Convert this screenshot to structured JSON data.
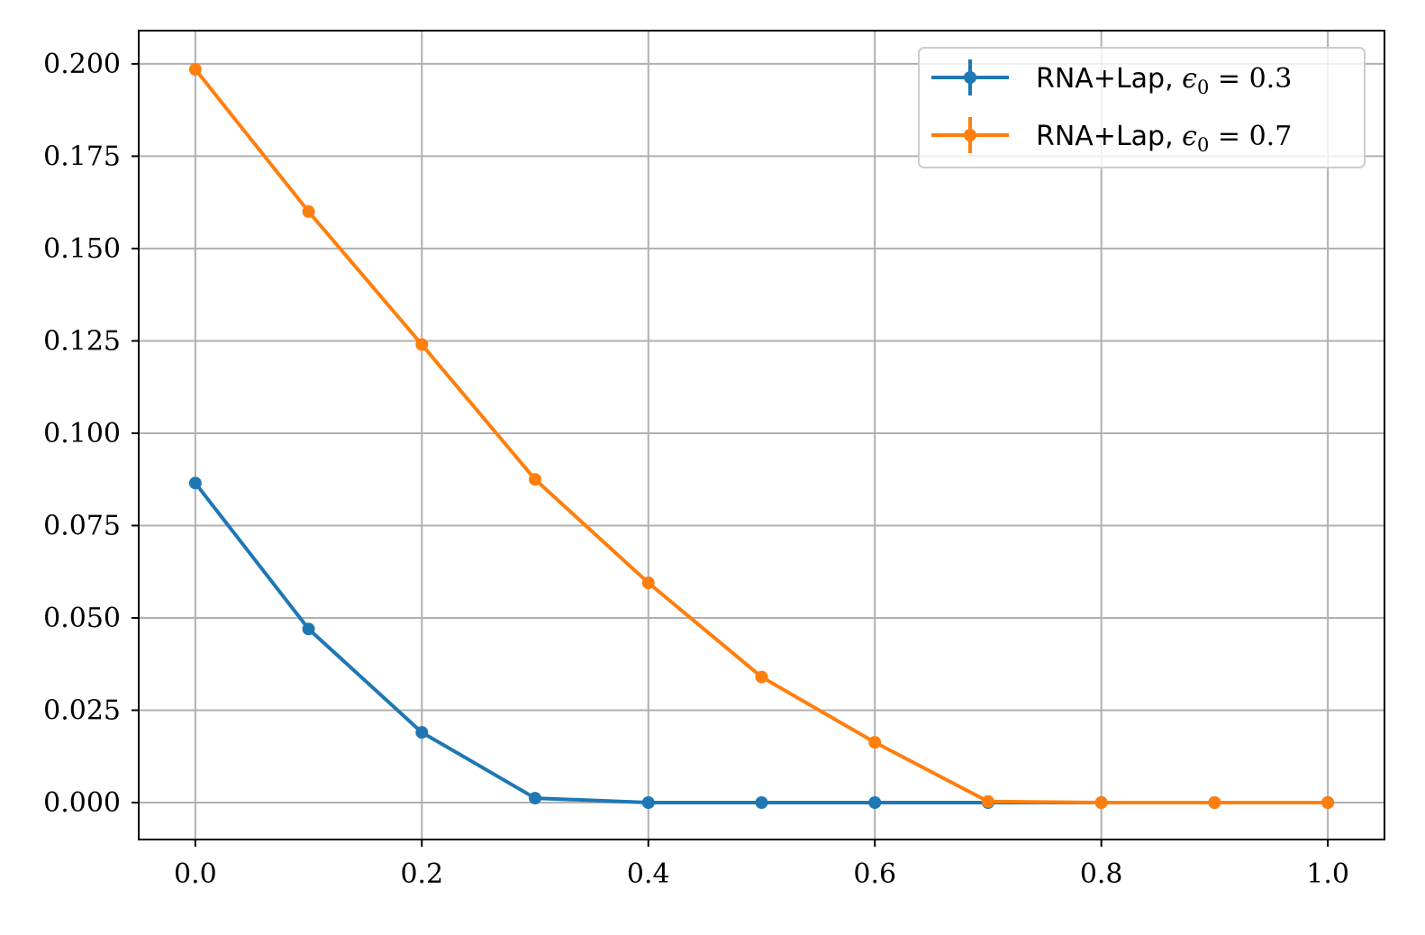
{
  "chart_data": {
    "type": "line",
    "title": "",
    "xlabel": "",
    "ylabel": "",
    "xlim": [
      -0.05,
      1.05
    ],
    "ylim": [
      -0.01,
      0.209
    ],
    "grid": true,
    "legend_position": "top-right",
    "x_ticks": [
      0.0,
      0.2,
      0.4,
      0.6,
      0.8,
      1.0
    ],
    "x_tick_labels": [
      "0.0",
      "0.2",
      "0.4",
      "0.6",
      "0.8",
      "1.0"
    ],
    "y_ticks": [
      0.0,
      0.025,
      0.05,
      0.075,
      0.1,
      0.125,
      0.15,
      0.175,
      0.2
    ],
    "y_tick_labels": [
      "0.000",
      "0.025",
      "0.050",
      "0.075",
      "0.100",
      "0.125",
      "0.150",
      "0.175",
      "0.200"
    ],
    "x": [
      0.0,
      0.1,
      0.2,
      0.3,
      0.4,
      0.5,
      0.6,
      0.7,
      0.8,
      0.9,
      1.0
    ],
    "series": [
      {
        "legend_prefix": "RNA+Lap, ",
        "legend_symbol": "ϵ",
        "legend_subscript": "0",
        "legend_rest": " = 0.3",
        "color": "#1f77b4",
        "values": [
          0.0865,
          0.047,
          0.019,
          0.0012,
          0.0,
          0.0,
          0.0,
          0.0,
          0.0,
          0.0,
          0.0
        ]
      },
      {
        "legend_prefix": "RNA+Lap, ",
        "legend_symbol": "ϵ",
        "legend_subscript": "0",
        "legend_rest": " = 0.7",
        "color": "#ff7f0e",
        "values": [
          0.1985,
          0.16,
          0.124,
          0.0875,
          0.0595,
          0.034,
          0.0163,
          0.0003,
          0.0,
          0.0,
          0.0
        ]
      }
    ]
  }
}
